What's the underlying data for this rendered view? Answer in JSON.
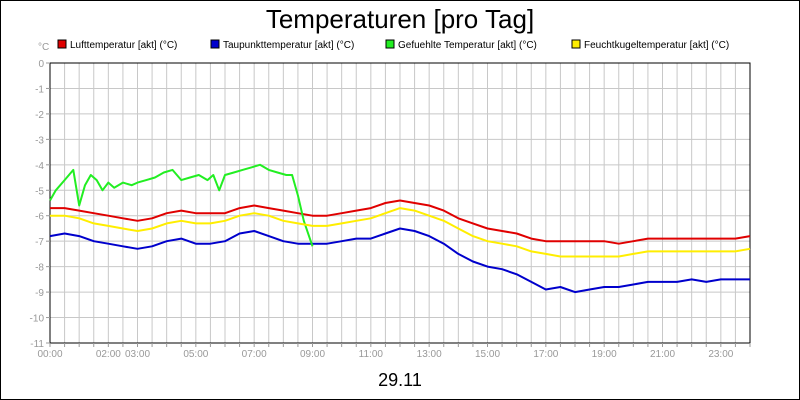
{
  "chart_data": {
    "type": "line",
    "title": "Temperaturen [pro Tag]",
    "xlabel": "29.11",
    "ylabel": "°C",
    "ylim": [
      -11,
      0
    ],
    "xlim": [
      0,
      24
    ],
    "grid": true,
    "legend_position": "top",
    "x_tick_labels": [
      {
        "x": 0,
        "label": "00:00"
      },
      {
        "x": 2,
        "label": "02:00"
      },
      {
        "x": 3,
        "label": "03:00"
      },
      {
        "x": 5,
        "label": "05:00"
      },
      {
        "x": 7,
        "label": "07:00"
      },
      {
        "x": 9,
        "label": "09:00"
      },
      {
        "x": 11,
        "label": "11:00"
      },
      {
        "x": 13,
        "label": "13:00"
      },
      {
        "x": 15,
        "label": "15:00"
      },
      {
        "x": 17,
        "label": "17:00"
      },
      {
        "x": 19,
        "label": "19:00"
      },
      {
        "x": 21,
        "label": "21:00"
      },
      {
        "x": 23,
        "label": "23:00"
      }
    ],
    "y_ticks": [
      0,
      -1,
      -2,
      -3,
      -4,
      -5,
      -6,
      -7,
      -8,
      -9,
      -10,
      -11
    ],
    "series": [
      {
        "name": "Lufttemperatur [akt] (°C)",
        "color": "#e00000",
        "x": [
          0,
          0.5,
          1,
          1.5,
          2,
          2.5,
          3,
          3.5,
          4,
          4.5,
          5,
          5.5,
          6,
          6.5,
          7,
          7.5,
          8,
          8.5,
          9,
          9.5,
          10,
          10.5,
          11,
          11.5,
          12,
          12.5,
          13,
          13.5,
          14,
          14.5,
          15,
          15.5,
          16,
          16.5,
          17,
          17.5,
          18,
          18.5,
          19,
          19.5,
          20,
          20.5,
          21,
          21.5,
          22,
          22.5,
          23,
          23.5,
          24
        ],
        "values": [
          -5.7,
          -5.7,
          -5.8,
          -5.9,
          -6.0,
          -6.1,
          -6.2,
          -6.1,
          -5.9,
          -5.8,
          -5.9,
          -5.9,
          -5.9,
          -5.7,
          -5.6,
          -5.7,
          -5.8,
          -5.9,
          -6.0,
          -6.0,
          -5.9,
          -5.8,
          -5.7,
          -5.5,
          -5.4,
          -5.5,
          -5.6,
          -5.8,
          -6.1,
          -6.3,
          -6.5,
          -6.6,
          -6.7,
          -6.9,
          -7.0,
          -7.0,
          -7.0,
          -7.0,
          -7.0,
          -7.1,
          -7.0,
          -6.9,
          -6.9,
          -6.9,
          -6.9,
          -6.9,
          -6.9,
          -6.9,
          -6.8
        ]
      },
      {
        "name": "Taupunkttemperatur [akt] (°C)",
        "color": "#0000cc",
        "x": [
          0,
          0.5,
          1,
          1.5,
          2,
          2.5,
          3,
          3.5,
          4,
          4.5,
          5,
          5.5,
          6,
          6.5,
          7,
          7.5,
          8,
          8.5,
          9,
          9.5,
          10,
          10.5,
          11,
          11.5,
          12,
          12.5,
          13,
          13.5,
          14,
          14.5,
          15,
          15.5,
          16,
          16.5,
          17,
          17.5,
          18,
          18.5,
          19,
          19.5,
          20,
          20.5,
          21,
          21.5,
          22,
          22.5,
          23,
          23.5,
          24
        ],
        "values": [
          -6.8,
          -6.7,
          -6.8,
          -7.0,
          -7.1,
          -7.2,
          -7.3,
          -7.2,
          -7.0,
          -6.9,
          -7.1,
          -7.1,
          -7.0,
          -6.7,
          -6.6,
          -6.8,
          -7.0,
          -7.1,
          -7.1,
          -7.1,
          -7.0,
          -6.9,
          -6.9,
          -6.7,
          -6.5,
          -6.6,
          -6.8,
          -7.1,
          -7.5,
          -7.8,
          -8.0,
          -8.1,
          -8.3,
          -8.6,
          -8.9,
          -8.8,
          -9.0,
          -8.9,
          -8.8,
          -8.8,
          -8.7,
          -8.6,
          -8.6,
          -8.6,
          -8.5,
          -8.6,
          -8.5,
          -8.5,
          -8.5
        ]
      },
      {
        "name": "Gefuehlte Temperatur [akt] (°C)",
        "color": "#22ee22",
        "x": [
          0,
          0.2,
          0.5,
          0.8,
          1.0,
          1.2,
          1.4,
          1.6,
          1.8,
          2.0,
          2.2,
          2.5,
          2.8,
          3.0,
          3.3,
          3.6,
          3.9,
          4.2,
          4.5,
          4.8,
          5.1,
          5.4,
          5.6,
          5.8,
          6.0,
          6.3,
          6.6,
          6.9,
          7.2,
          7.5,
          7.8,
          8.1,
          8.3,
          8.5,
          8.7,
          9.0
        ],
        "values": [
          -5.4,
          -5.0,
          -4.6,
          -4.2,
          -5.6,
          -4.8,
          -4.4,
          -4.6,
          -5.0,
          -4.7,
          -4.9,
          -4.7,
          -4.8,
          -4.7,
          -4.6,
          -4.5,
          -4.3,
          -4.2,
          -4.6,
          -4.5,
          -4.4,
          -4.6,
          -4.4,
          -5.0,
          -4.4,
          -4.3,
          -4.2,
          -4.1,
          -4.0,
          -4.2,
          -4.3,
          -4.4,
          -4.4,
          -5.2,
          -6.2,
          -7.2
        ]
      },
      {
        "name": "Feuchtkugeltemperatur [akt] (°C)",
        "color": "#ffee00",
        "x": [
          0,
          0.5,
          1,
          1.5,
          2,
          2.5,
          3,
          3.5,
          4,
          4.5,
          5,
          5.5,
          6,
          6.5,
          7,
          7.5,
          8,
          8.5,
          9,
          9.5,
          10,
          10.5,
          11,
          11.5,
          12,
          12.5,
          13,
          13.5,
          14,
          14.5,
          15,
          15.5,
          16,
          16.5,
          17,
          17.5,
          18,
          18.5,
          19,
          19.5,
          20,
          20.5,
          21,
          21.5,
          22,
          22.5,
          23,
          23.5,
          24
        ],
        "values": [
          -6.0,
          -6.0,
          -6.1,
          -6.3,
          -6.4,
          -6.5,
          -6.6,
          -6.5,
          -6.3,
          -6.2,
          -6.3,
          -6.3,
          -6.2,
          -6.0,
          -5.9,
          -6.0,
          -6.2,
          -6.3,
          -6.4,
          -6.4,
          -6.3,
          -6.2,
          -6.1,
          -5.9,
          -5.7,
          -5.8,
          -6.0,
          -6.2,
          -6.5,
          -6.8,
          -7.0,
          -7.1,
          -7.2,
          -7.4,
          -7.5,
          -7.6,
          -7.6,
          -7.6,
          -7.6,
          -7.6,
          -7.5,
          -7.4,
          -7.4,
          -7.4,
          -7.4,
          -7.4,
          -7.4,
          -7.4,
          -7.3
        ]
      }
    ]
  }
}
